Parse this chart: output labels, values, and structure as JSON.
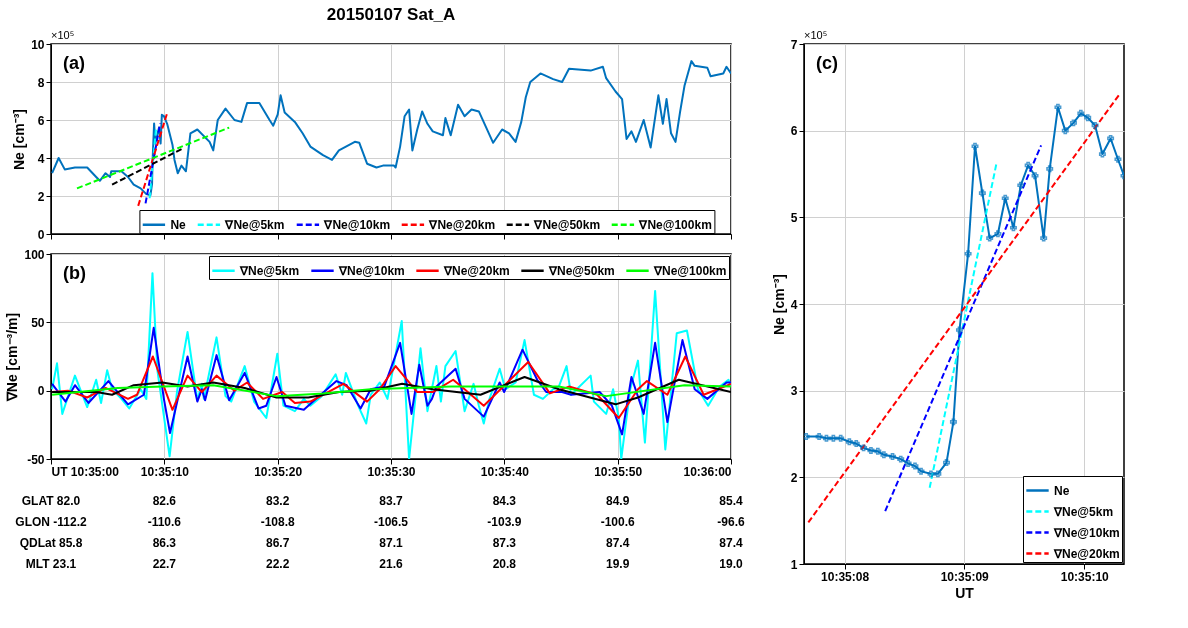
{
  "chart_data": [
    {
      "type": "line",
      "title": "20150107 Sat_A",
      "ylabel": "Ne [cm⁻³]",
      "annotations": [
        "(a)",
        "×10⁵"
      ],
      "xlim": [
        10.583333,
        10.6
      ],
      "ylim": [
        0,
        10
      ],
      "yticks": [
        0,
        2,
        4,
        6,
        8,
        10
      ],
      "tick_labels": "y",
      "grid": true,
      "legend": "bottom",
      "xticks": [
        {
          "value": 10.583333,
          "label": null
        },
        {
          "value": 10.586111,
          "label": null
        },
        {
          "value": 10.588889,
          "label": null
        },
        {
          "value": 10.591667,
          "label": null
        },
        {
          "value": 10.594444,
          "label": null
        },
        {
          "value": 10.597222,
          "label": null
        },
        {
          "value": 10.6,
          "label": null
        }
      ],
      "series": [
        {
          "name": "Ne",
          "color": "#0072bd",
          "line_style": "solid",
          "x": [
            10.58336,
            10.58352,
            10.58367,
            10.58392,
            10.58422,
            10.58444,
            10.58453,
            10.58467,
            10.58478,
            10.58481,
            10.58506,
            10.58522,
            10.58536,
            10.58553,
            10.58567,
            10.58577,
            10.58581,
            10.58582,
            10.58586,
            10.58589,
            10.58598,
            10.58602,
            10.58605,
            10.5861,
            10.58618,
            10.58631,
            10.58636,
            10.58644,
            10.58653,
            10.58664,
            10.58675,
            10.58692,
            10.58722,
            10.58731,
            10.58742,
            10.58761,
            10.58783,
            10.588,
            10.58814,
            10.58844,
            10.58869,
            10.58878,
            10.58889,
            10.58896,
            10.58906,
            10.58931,
            10.5895,
            10.58969,
            10.59,
            10.59022,
            10.59039,
            10.59078,
            10.59089,
            10.59108,
            10.59131,
            10.59147,
            10.59174,
            10.59178,
            10.59189,
            10.592,
            10.59211,
            10.59219,
            10.59231,
            10.59243,
            10.59256,
            10.59269,
            10.59294,
            10.593,
            10.59313,
            10.59331,
            10.59347,
            10.59364,
            10.59382,
            10.59417,
            10.59439,
            10.59456,
            10.59472,
            10.59486,
            10.59497,
            10.59508,
            10.59533,
            10.59564,
            10.59586,
            10.59603,
            10.59656,
            10.59686,
            10.59694,
            10.59717,
            10.59733,
            10.59744,
            10.59756,
            10.59767,
            10.59786,
            10.59803,
            10.59822,
            10.59833,
            10.59842,
            10.59853,
            10.59864,
            10.59875,
            10.59886,
            10.59903,
            10.59911,
            10.59942,
            10.5995,
            10.59981,
            10.59989,
            10.6
          ],
          "values": [
            3.2,
            4.0,
            3.4,
            3.5,
            3.5,
            3.0,
            2.8,
            3.2,
            3.0,
            3.3,
            3.3,
            3.0,
            2.6,
            2.4,
            2.1,
            2.04,
            2.64,
            3.7,
            5.82,
            4.76,
            5.6,
            4.76,
            6.27,
            6.2,
            5.8,
            4.7,
            3.9,
            3.2,
            3.6,
            3.3,
            5.3,
            5.5,
            4.85,
            4.4,
            6.0,
            6.6,
            6.0,
            5.9,
            6.9,
            6.9,
            6.0,
            5.7,
            6.3,
            7.3,
            6.4,
            5.9,
            5.3,
            4.6,
            4.15,
            3.9,
            4.4,
            4.85,
            4.8,
            3.7,
            3.5,
            3.6,
            3.6,
            3.5,
            4.6,
            6.2,
            6.55,
            4.4,
            5.5,
            6.45,
            5.8,
            5.4,
            5.2,
            6.1,
            5.2,
            6.8,
            6.2,
            6.55,
            6.45,
            4.8,
            5.5,
            5.3,
            4.85,
            5.9,
            7.2,
            8.0,
            8.45,
            8.15,
            8.0,
            8.7,
            8.6,
            8.8,
            8.2,
            7.5,
            7.1,
            5.0,
            5.4,
            4.85,
            6.0,
            4.55,
            7.3,
            5.8,
            7.1,
            5.3,
            4.85,
            6.4,
            7.8,
            9.1,
            8.85,
            8.75,
            8.3,
            8.45,
            8.8,
            8.45
          ]
        },
        {
          "name": "∇Ne@5km",
          "color": "#00ffff",
          "line_style": "dashed",
          "x": [
            10.58575,
            10.58591
          ],
          "values": [
            1.88,
            5.63
          ]
        },
        {
          "name": "∇Ne@10km",
          "color": "#0000ff",
          "line_style": "dashed",
          "x": [
            10.58565,
            10.58601
          ],
          "values": [
            1.61,
            5.83
          ]
        },
        {
          "name": "∇Ne@20km",
          "color": "#ff0000",
          "line_style": "dashed",
          "x": [
            10.58547,
            10.58619
          ],
          "values": [
            1.48,
            6.43
          ]
        },
        {
          "name": "∇Ne@50km",
          "color": "#000000",
          "line_style": "dashed",
          "x": [
            10.58483,
            10.58656
          ],
          "values": [
            2.6,
            4.5
          ]
        },
        {
          "name": "∇Ne@100km",
          "color": "#00ff00",
          "line_style": "dashed",
          "x": [
            10.58397,
            10.5877
          ],
          "values": [
            2.4,
            5.6
          ]
        }
      ]
    },
    {
      "type": "line",
      "ylabel": "∇Ne [cm⁻³/m]",
      "annotations": [
        "(b)",
        "GLAT 82.0",
        "82.6",
        "83.2",
        "83.7",
        "84.3",
        "84.9",
        "85.4",
        "GLON -112.2",
        "-110.6",
        "-108.8",
        "-106.5",
        "-103.9",
        "-100.6",
        "-96.6",
        "QDLat 85.8",
        "86.3",
        "86.7",
        "87.1",
        "87.3",
        "87.4",
        "87.4",
        "MLT 23.1",
        "22.7",
        "22.2",
        "21.6",
        "20.8",
        "19.9",
        "19.0"
      ],
      "xlim": [
        10.583333,
        10.6
      ],
      "ylim": [
        -50,
        100
      ],
      "yticks": [
        -50,
        0,
        50,
        100
      ],
      "grid": true,
      "legend": "top right",
      "xticks": [
        {
          "value": 10.583333,
          "label": "UT 10:35:00"
        },
        {
          "value": 10.586111,
          "label": "10:35:10"
        },
        {
          "value": 10.588889,
          "label": "10:35:20"
        },
        {
          "value": 10.591667,
          "label": "10:35:30"
        },
        {
          "value": 10.594444,
          "label": "10:35:40"
        },
        {
          "value": 10.597222,
          "label": "10:35:50"
        },
        {
          "value": 10.6,
          "label": "10:36:00"
        }
      ],
      "series": [
        {
          "name": "∇Ne@5km",
          "color": "#00ffff",
          "line_style": "solid",
          "x": [
            10.58336,
            10.58348,
            10.58361,
            10.58392,
            10.58422,
            10.58444,
            10.58456,
            10.58471,
            10.58483,
            10.58506,
            10.58525,
            10.58553,
            10.58567,
            10.58582,
            10.58594,
            10.58624,
            10.58642,
            10.58668,
            10.58692,
            10.58703,
            10.58708,
            10.58739,
            10.58761,
            10.58775,
            10.58808,
            10.58831,
            10.58861,
            10.58888,
            10.58903,
            10.58931,
            10.58953,
            10.58969,
            10.58997,
            10.59031,
            10.59047,
            10.59056,
            10.59086,
            10.59106,
            10.59117,
            10.59139,
            10.59158,
            10.59193,
            10.59211,
            10.59239,
            10.59256,
            10.59278,
            10.59289,
            10.593,
            10.59325,
            10.59347,
            10.59369,
            10.59382,
            10.59394,
            10.59408,
            10.59433,
            10.59447,
            10.59472,
            10.59494,
            10.59517,
            10.59539,
            10.59564,
            10.59578,
            10.59597,
            10.59608,
            10.59656,
            10.59664,
            10.59694,
            10.59711,
            10.59725,
            10.59731,
            10.59753,
            10.59772,
            10.59789,
            10.59814,
            10.59839,
            10.59867,
            10.59892,
            10.59919,
            10.59944,
            10.59972,
            10.59994,
            10.6
          ],
          "values": [
            1,
            20,
            -17,
            11,
            -12,
            8,
            -9,
            15,
            1,
            -6,
            -13,
            1,
            -6,
            86,
            15,
            -48,
            -1,
            43,
            -7,
            5,
            -6,
            39,
            -4,
            -8,
            18,
            -8,
            -20,
            27,
            -11,
            -15,
            -6,
            -11,
            -4,
            12,
            -3,
            13,
            -11,
            -24,
            -3,
            6,
            -6,
            51,
            -50,
            31,
            -15,
            18,
            -8,
            18,
            29,
            -15,
            5,
            -11,
            -24,
            -6,
            16,
            1,
            6,
            37,
            -3,
            -6,
            1,
            3,
            18,
            -3,
            11,
            -8,
            -17,
            1,
            -20,
            -50,
            1,
            22,
            -38,
            73,
            -43,
            42,
            44,
            1,
            -11,
            3,
            8,
            3
          ]
        },
        {
          "name": "∇Ne@10km",
          "color": "#0000ff",
          "line_style": "solid",
          "x": [
            10.58336,
            10.58369,
            10.58392,
            10.58425,
            10.58474,
            10.58522,
            10.58561,
            10.58585,
            10.5861,
            10.58625,
            10.58668,
            10.58692,
            10.58703,
            10.58711,
            10.58739,
            10.5877,
            10.58808,
            10.58842,
            10.58861,
            10.58886,
            10.58908,
            10.58953,
            10.58983,
            10.59033,
            10.59058,
            10.59092,
            10.59117,
            10.5915,
            10.59189,
            10.59217,
            10.59236,
            10.59256,
            10.59267,
            10.59278,
            10.59325,
            10.59347,
            10.59394,
            10.59433,
            10.59444,
            10.59489,
            10.59525,
            10.59547,
            10.59586,
            10.59608,
            10.59678,
            10.59708,
            10.59733,
            10.59756,
            10.59786,
            10.59814,
            10.59844,
            10.59881,
            10.59911,
            10.59942,
            10.59989,
            10.6
          ],
          "values": [
            5,
            -8,
            4,
            -9,
            7,
            -10,
            -3,
            46,
            -6,
            -31,
            25,
            -8,
            1,
            -7,
            26,
            -7,
            13,
            -13,
            -11,
            10,
            -11,
            -14,
            -6,
            7,
            4,
            -13,
            1,
            3,
            35,
            -17,
            19,
            -11,
            -6,
            3,
            16,
            -6,
            -19,
            6,
            -1,
            30,
            8,
            -1,
            -1,
            -3,
            -1,
            -11,
            -32,
            10,
            -17,
            35,
            -23,
            37,
            1,
            -6,
            6,
            6
          ]
        },
        {
          "name": "∇Ne@20km",
          "color": "#ff0000",
          "line_style": "solid",
          "x": [
            10.58336,
            10.58375,
            10.58422,
            10.58467,
            10.58522,
            10.58544,
            10.58583,
            10.58631,
            10.58668,
            10.58703,
            10.58739,
            10.58783,
            10.58814,
            10.58853,
            10.589,
            10.58931,
            10.58969,
            10.5905,
            10.59108,
            10.59139,
            10.59178,
            10.59231,
            10.59269,
            10.59319,
            10.59347,
            10.59394,
            10.59442,
            10.59503,
            10.59556,
            10.59603,
            10.59672,
            10.59725,
            10.59772,
            10.59794,
            10.59844,
            10.59888,
            10.59933,
            10.6
          ],
          "values": [
            -1,
            0,
            -5,
            2,
            -6,
            -3,
            25,
            -14,
            11,
            -1,
            11,
            0,
            6,
            -6,
            -1,
            -9,
            -8,
            5,
            -8,
            1,
            18,
            -1,
            -1,
            8,
            1,
            -11,
            3,
            21,
            -2,
            3,
            -3,
            -20,
            1,
            7,
            -3,
            25,
            -3,
            5
          ]
        },
        {
          "name": "∇Ne@50km",
          "color": "#000000",
          "line_style": "solid",
          "x": [
            10.58336,
            10.58444,
            10.58483,
            10.58536,
            10.58606,
            10.58668,
            10.58731,
            10.58808,
            10.58886,
            10.58964,
            10.59039,
            10.59117,
            10.59194,
            10.59269,
            10.59386,
            10.59494,
            10.59578,
            10.59717,
            10.59772,
            10.59872,
            10.6
          ],
          "values": [
            -1,
            -1,
            -3,
            4,
            6,
            3,
            6,
            2,
            -5,
            -5,
            -1,
            0,
            5,
            1,
            -3,
            10,
            1,
            -10,
            -5,
            8,
            -1
          ]
        },
        {
          "name": "∇Ne@100km",
          "color": "#00ff00",
          "line_style": "solid",
          "x": [
            10.58336,
            10.58497,
            10.58606,
            10.58731,
            10.58886,
            10.59,
            10.59117,
            10.59314,
            10.59578,
            10.59694,
            10.59886,
            10.6
          ],
          "values": [
            -3,
            2,
            3,
            4,
            -4,
            -2,
            1,
            3,
            3,
            -4,
            4,
            3
          ]
        }
      ]
    },
    {
      "type": "line",
      "xlabel": "UT",
      "ylabel": "Ne [cm⁻³]",
      "annotations": [
        "(c)",
        "×10⁵"
      ],
      "xlim": [
        10.585462,
        10.586203
      ],
      "ylim": [
        1,
        7
      ],
      "yticks": [
        1,
        2,
        3,
        4,
        5,
        6,
        7
      ],
      "grid": true,
      "legend": "bottom right",
      "xticks": [
        {
          "value": 10.585556,
          "label": "10:35:08"
        },
        {
          "value": 10.585833,
          "label": "10:35:09"
        },
        {
          "value": 10.586111,
          "label": "10:35:10"
        }
      ],
      "series": [
        {
          "name": "Ne",
          "color": "#0072bd",
          "line_style": "solid",
          "marker": "cross",
          "x": [
            10.585467,
            10.585497,
            10.585514,
            10.58553,
            10.585547,
            10.585567,
            10.585583,
            10.5856,
            10.585617,
            10.585633,
            10.585647,
            10.585667,
            10.585686,
            10.585703,
            10.585719,
            10.585733,
            10.585756,
            10.585772,
            10.585792,
            10.585808,
            10.585822,
            10.585842,
            10.585858,
            10.585875,
            10.585892,
            10.585911,
            10.585928,
            10.585947,
            10.585964,
            10.585981,
            10.585997,
            10.586017,
            10.586031,
            10.58605,
            10.586067,
            10.586086,
            10.586103,
            10.586119,
            10.586136,
            10.586153,
            10.586172,
            10.586189,
            10.586203
          ],
          "values": [
            2.47,
            2.47,
            2.45,
            2.45,
            2.45,
            2.41,
            2.39,
            2.34,
            2.31,
            2.3,
            2.26,
            2.24,
            2.21,
            2.16,
            2.13,
            2.07,
            2.04,
            2.04,
            2.17,
            2.64,
            3.7,
            4.58,
            5.82,
            5.28,
            4.76,
            4.81,
            5.22,
            4.88,
            5.37,
            5.6,
            5.48,
            4.76,
            5.56,
            6.27,
            6.0,
            6.09,
            6.2,
            6.15,
            6.06,
            5.73,
            5.91,
            5.67,
            5.48
          ]
        },
        {
          "name": "∇Ne@5km",
          "color": "#00ffff",
          "line_style": "dashed",
          "x": [
            10.585753,
            10.585908
          ],
          "values": [
            1.88,
            5.63
          ]
        },
        {
          "name": "∇Ne@10km",
          "color": "#0000ff",
          "line_style": "dashed",
          "x": [
            10.58565,
            10.586011
          ],
          "values": [
            1.61,
            5.83
          ]
        },
        {
          "name": "∇Ne@20km",
          "color": "#ff0000",
          "line_style": "dashed",
          "x": [
            10.585472,
            10.586194
          ],
          "values": [
            1.48,
            6.43
          ]
        }
      ]
    }
  ]
}
